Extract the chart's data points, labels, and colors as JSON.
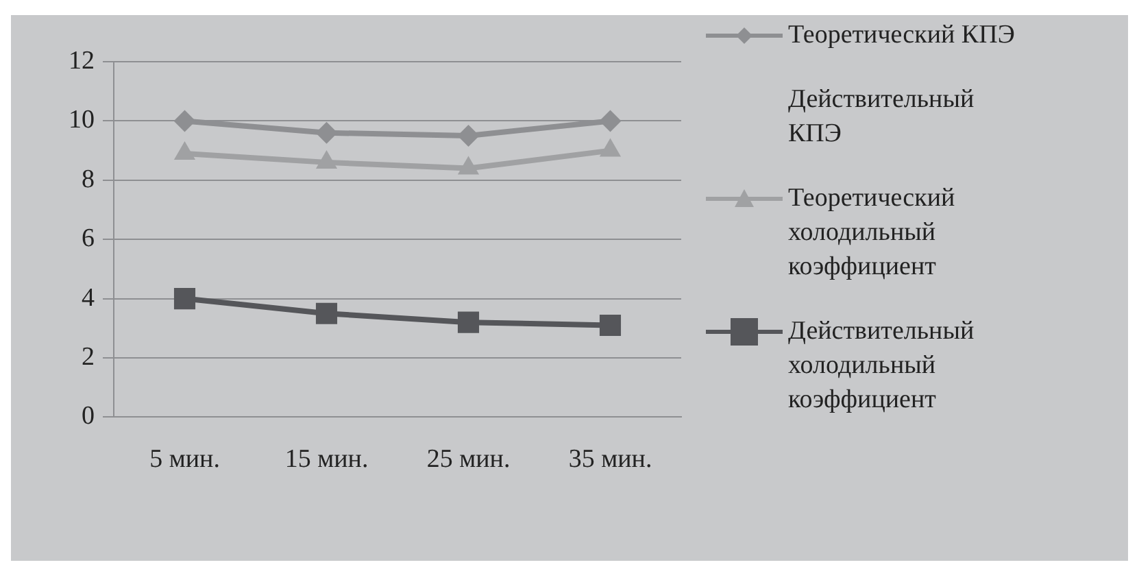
{
  "chart_data": {
    "type": "line",
    "categories": [
      "5 мин.",
      "15 мин.",
      "25 мин.",
      "35 мин."
    ],
    "series": [
      {
        "name": "Теоретический КПЭ",
        "color": "#8e8f92",
        "marker": "diamond",
        "values": [
          10,
          9.6,
          9.5,
          10
        ]
      },
      {
        "name": "Действительный КПЭ",
        "values": [
          null,
          null,
          null,
          null
        ]
      },
      {
        "name": "Теоретический холодильный коэффициент",
        "color": "#a0a1a3",
        "marker": "triangle",
        "values": [
          8.9,
          8.6,
          8.4,
          9.0
        ]
      },
      {
        "name": "Действительный холодильный коэффициент",
        "color": "#55565a",
        "marker": "square",
        "values": [
          4.0,
          3.5,
          3.2,
          3.1
        ]
      }
    ],
    "ylim": [
      0,
      12
    ],
    "yticks": [
      0,
      2,
      4,
      6,
      8,
      10,
      12
    ],
    "grid": "y",
    "legend": "right"
  }
}
